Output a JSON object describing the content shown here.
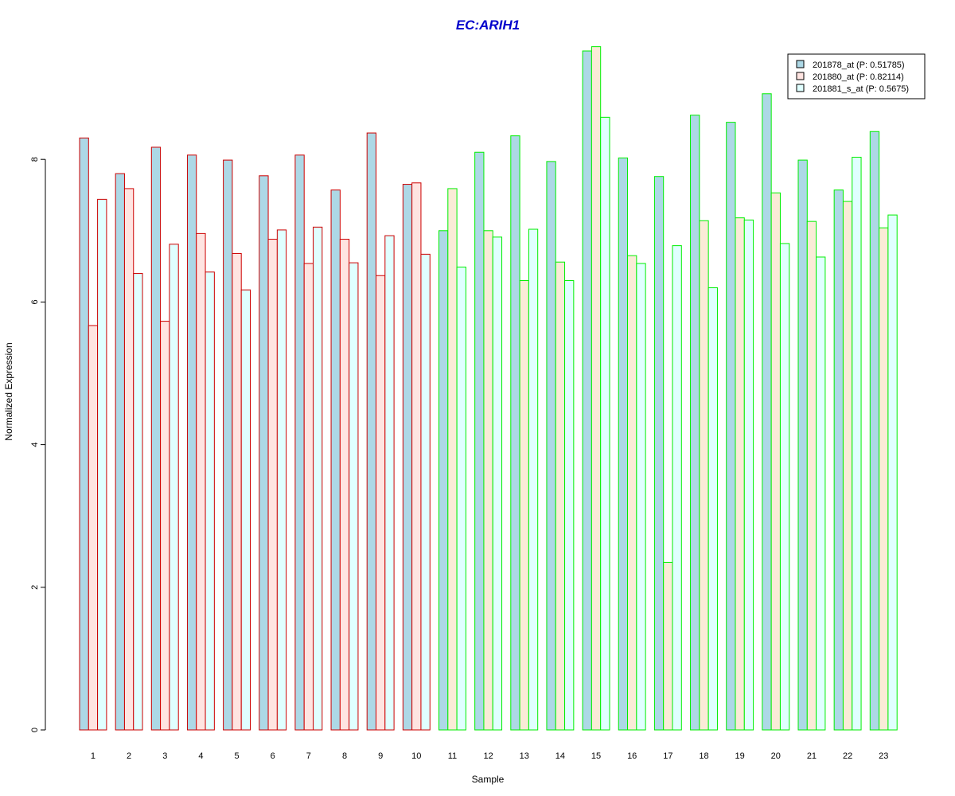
{
  "chart_data": {
    "type": "bar",
    "title": "EC:ARIH1",
    "xlabel": "Sample",
    "ylabel": "Normalized Expression",
    "categories": [
      "1",
      "2",
      "3",
      "4",
      "5",
      "6",
      "7",
      "8",
      "9",
      "10",
      "11",
      "12",
      "13",
      "14",
      "15",
      "16",
      "17",
      "18",
      "19",
      "20",
      "21",
      "22",
      "23"
    ],
    "ylim": [
      0,
      9.6
    ],
    "yticks": [
      0,
      2,
      4,
      6,
      8
    ],
    "grid": false,
    "legend_position": "top-right",
    "series": [
      {
        "name": "201878_at (P: 0.51785)",
        "fill": "#add8e6",
        "values": [
          8.3,
          7.8,
          8.17,
          8.06,
          7.99,
          7.77,
          8.06,
          7.57,
          8.37,
          7.65,
          7.0,
          8.1,
          8.33,
          7.97,
          9.52,
          8.02,
          7.76,
          8.62,
          8.52,
          8.92,
          7.99,
          7.57,
          8.39
        ]
      },
      {
        "name": "201880_at (P: 0.82114)",
        "fill_group1": "#ffe4e1",
        "fill_group2": "#faebd7",
        "values": [
          5.67,
          7.59,
          5.73,
          6.96,
          6.68,
          6.88,
          6.54,
          6.88,
          6.37,
          7.67,
          7.59,
          7.0,
          6.3,
          6.56,
          9.58,
          6.65,
          2.35,
          7.14,
          7.18,
          7.53,
          7.13,
          7.41,
          7.04
        ]
      },
      {
        "name": "201881_s_at (P: 0.5675)",
        "fill": "#e0ffff",
        "values": [
          7.44,
          6.4,
          6.81,
          6.42,
          6.17,
          7.01,
          7.05,
          6.55,
          6.93,
          6.67,
          6.49,
          6.91,
          7.02,
          6.3,
          8.59,
          6.54,
          6.79,
          6.2,
          7.15,
          6.82,
          6.63,
          8.03,
          7.22
        ]
      }
    ],
    "group_border_colors": {
      "samples_1_to_10": "#cc0000",
      "samples_11_to_23": "#00ee00"
    },
    "title_color": "#0000cc"
  }
}
